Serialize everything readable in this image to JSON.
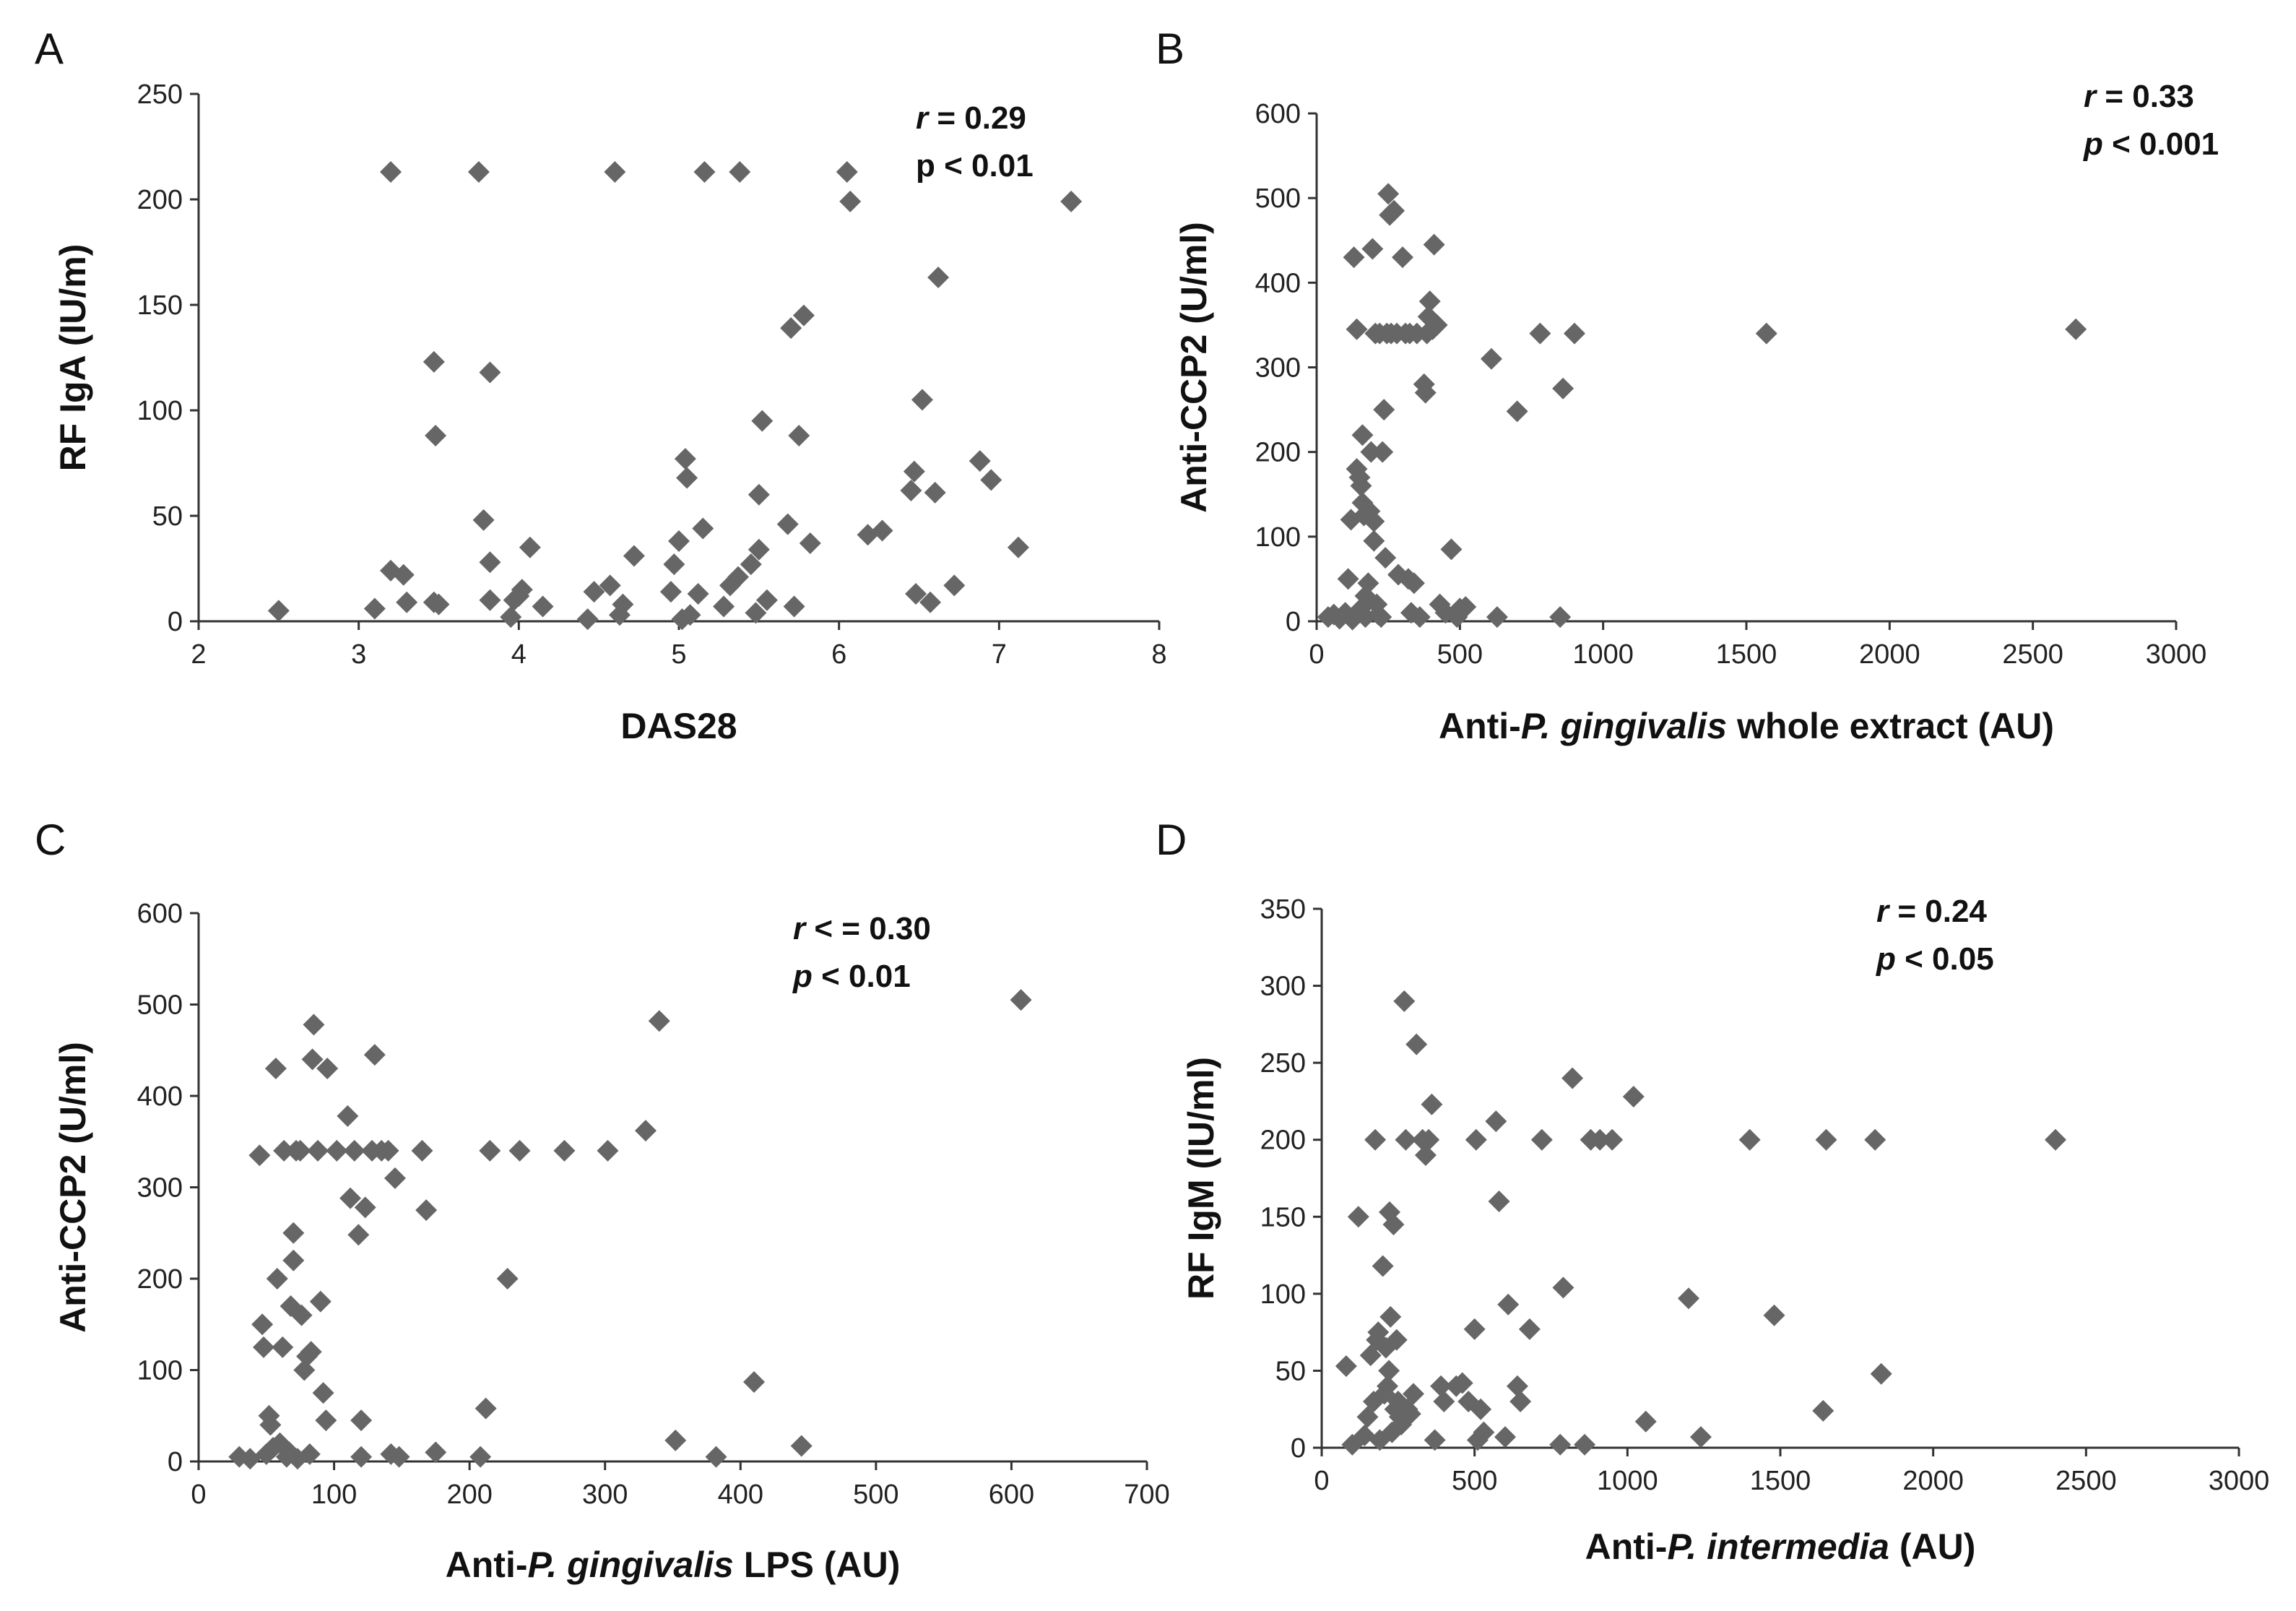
{
  "colors": {
    "marker": "#666666",
    "axis": "#333333",
    "text": "#111111"
  },
  "chart_data": [
    {
      "panel": "A",
      "type": "scatter",
      "marker": "diamond",
      "xlabel_parts": [
        {
          "t": "DAS28",
          "i": false
        }
      ],
      "ylabel_parts": [
        {
          "t": "RF IgA (IU/m)",
          "i": false
        }
      ],
      "xlim": [
        2,
        8
      ],
      "ylim": [
        0,
        250
      ],
      "xticks": [
        2,
        3,
        4,
        5,
        6,
        7,
        8
      ],
      "yticks": [
        0,
        50,
        100,
        150,
        200,
        250
      ],
      "annotation": [
        [
          {
            "t": "r",
            "i": true
          },
          {
            "t": " = 0.29",
            "i": false
          }
        ],
        [
          {
            "t": "p < 0.01",
            "i": false
          }
        ]
      ],
      "points": [
        [
          2.5,
          5
        ],
        [
          3.1,
          6
        ],
        [
          3.2,
          24
        ],
        [
          3.2,
          213
        ],
        [
          3.28,
          22
        ],
        [
          3.3,
          9
        ],
        [
          3.47,
          9
        ],
        [
          3.47,
          123
        ],
        [
          3.48,
          88
        ],
        [
          3.5,
          8
        ],
        [
          3.75,
          213
        ],
        [
          3.78,
          48
        ],
        [
          3.82,
          28
        ],
        [
          3.82,
          118
        ],
        [
          3.82,
          10
        ],
        [
          3.95,
          2
        ],
        [
          3.97,
          10
        ],
        [
          4.0,
          12
        ],
        [
          4.02,
          15
        ],
        [
          4.07,
          35
        ],
        [
          4.15,
          7
        ],
        [
          4.43,
          1
        ],
        [
          4.47,
          14
        ],
        [
          4.57,
          17
        ],
        [
          4.6,
          213
        ],
        [
          4.63,
          3
        ],
        [
          4.65,
          8
        ],
        [
          4.72,
          31
        ],
        [
          4.95,
          14
        ],
        [
          4.97,
          27
        ],
        [
          5.0,
          38
        ],
        [
          5.02,
          1
        ],
        [
          5.04,
          77
        ],
        [
          5.05,
          68
        ],
        [
          5.07,
          3
        ],
        [
          5.12,
          13
        ],
        [
          5.15,
          44
        ],
        [
          5.16,
          213
        ],
        [
          5.28,
          7
        ],
        [
          5.32,
          17
        ],
        [
          5.37,
          21
        ],
        [
          5.38,
          213
        ],
        [
          5.45,
          27
        ],
        [
          5.48,
          4
        ],
        [
          5.5,
          34
        ],
        [
          5.5,
          60
        ],
        [
          5.52,
          95
        ],
        [
          5.55,
          10
        ],
        [
          5.68,
          46
        ],
        [
          5.7,
          139
        ],
        [
          5.72,
          7
        ],
        [
          5.75,
          88
        ],
        [
          5.78,
          145
        ],
        [
          5.82,
          37
        ],
        [
          6.05,
          213
        ],
        [
          6.07,
          199
        ],
        [
          6.18,
          41
        ],
        [
          6.27,
          43
        ],
        [
          6.45,
          62
        ],
        [
          6.47,
          71
        ],
        [
          6.48,
          13
        ],
        [
          6.52,
          105
        ],
        [
          6.57,
          9
        ],
        [
          6.6,
          61
        ],
        [
          6.62,
          163
        ],
        [
          6.72,
          17
        ],
        [
          6.88,
          76
        ],
        [
          6.95,
          67
        ],
        [
          7.12,
          35
        ],
        [
          7.45,
          199
        ]
      ]
    },
    {
      "panel": "B",
      "type": "scatter",
      "marker": "diamond",
      "xlabel_parts": [
        {
          "t": "Anti-",
          "i": false
        },
        {
          "t": "P. gingivalis",
          "i": true
        },
        {
          "t": " whole extract (AU)",
          "i": false
        }
      ],
      "ylabel_parts": [
        {
          "t": "Anti-CCP2 (U/ml)",
          "i": false
        }
      ],
      "xlim": [
        0,
        3000
      ],
      "ylim": [
        0,
        600
      ],
      "xticks": [
        0,
        500,
        1000,
        1500,
        2000,
        2500,
        3000
      ],
      "yticks": [
        0,
        100,
        200,
        300,
        400,
        500,
        600
      ],
      "annotation": [
        [
          {
            "t": "r",
            "i": true
          },
          {
            "t": " = 0.33",
            "i": false
          }
        ],
        [
          {
            "t": "p",
            "i": true
          },
          {
            "t": " < 0.001",
            "i": false
          }
        ]
      ],
      "points": [
        [
          40,
          5
        ],
        [
          60,
          8
        ],
        [
          80,
          3
        ],
        [
          100,
          10
        ],
        [
          110,
          50
        ],
        [
          120,
          120
        ],
        [
          125,
          2
        ],
        [
          130,
          430
        ],
        [
          140,
          345
        ],
        [
          140,
          180
        ],
        [
          150,
          170
        ],
        [
          155,
          160
        ],
        [
          155,
          15
        ],
        [
          160,
          140
        ],
        [
          160,
          220
        ],
        [
          165,
          125
        ],
        [
          170,
          5
        ],
        [
          170,
          30
        ],
        [
          180,
          45
        ],
        [
          185,
          130
        ],
        [
          190,
          200
        ],
        [
          195,
          440
        ],
        [
          200,
          95
        ],
        [
          200,
          118
        ],
        [
          205,
          340
        ],
        [
          210,
          20
        ],
        [
          215,
          8
        ],
        [
          220,
          340
        ],
        [
          225,
          5
        ],
        [
          230,
          200
        ],
        [
          235,
          250
        ],
        [
          240,
          75
        ],
        [
          245,
          340
        ],
        [
          250,
          505
        ],
        [
          255,
          480
        ],
        [
          260,
          340
        ],
        [
          270,
          485
        ],
        [
          280,
          340
        ],
        [
          285,
          55
        ],
        [
          300,
          430
        ],
        [
          310,
          340
        ],
        [
          320,
          50
        ],
        [
          325,
          340
        ],
        [
          330,
          10
        ],
        [
          340,
          45
        ],
        [
          350,
          340
        ],
        [
          360,
          5
        ],
        [
          375,
          280
        ],
        [
          380,
          270
        ],
        [
          385,
          340
        ],
        [
          390,
          360
        ],
        [
          395,
          378
        ],
        [
          405,
          345
        ],
        [
          410,
          445
        ],
        [
          420,
          350
        ],
        [
          430,
          20
        ],
        [
          450,
          10
        ],
        [
          470,
          85
        ],
        [
          490,
          5
        ],
        [
          500,
          15
        ],
        [
          520,
          17
        ],
        [
          610,
          310
        ],
        [
          630,
          5
        ],
        [
          700,
          248
        ],
        [
          780,
          340
        ],
        [
          850,
          5
        ],
        [
          860,
          275
        ],
        [
          900,
          340
        ],
        [
          1570,
          340
        ],
        [
          2650,
          345
        ]
      ]
    },
    {
      "panel": "C",
      "type": "scatter",
      "marker": "diamond",
      "xlabel_parts": [
        {
          "t": "Anti-",
          "i": false
        },
        {
          "t": "P. gingivalis",
          "i": true
        },
        {
          "t": " LPS (AU)",
          "i": false
        }
      ],
      "ylabel_parts": [
        {
          "t": "Anti-CCP2 (U/ml)",
          "i": false
        }
      ],
      "xlim": [
        0,
        700
      ],
      "ylim": [
        0,
        600
      ],
      "xticks": [
        0,
        100,
        200,
        300,
        400,
        500,
        600,
        700
      ],
      "yticks": [
        0,
        100,
        200,
        300,
        400,
        500,
        600
      ],
      "annotation": [
        [
          {
            "t": "r",
            "i": true
          },
          {
            "t": " < = 0.30",
            "i": false
          }
        ],
        [
          {
            "t": "p",
            "i": true
          },
          {
            "t": " < 0.01",
            "i": false
          }
        ]
      ],
      "points": [
        [
          30,
          5
        ],
        [
          38,
          3
        ],
        [
          45,
          335
        ],
        [
          47,
          150
        ],
        [
          48,
          125
        ],
        [
          50,
          8
        ],
        [
          52,
          50
        ],
        [
          53,
          40
        ],
        [
          55,
          15
        ],
        [
          57,
          430
        ],
        [
          58,
          200
        ],
        [
          60,
          20
        ],
        [
          62,
          125
        ],
        [
          63,
          340
        ],
        [
          65,
          5
        ],
        [
          67,
          10
        ],
        [
          68,
          170
        ],
        [
          70,
          220
        ],
        [
          70,
          250
        ],
        [
          72,
          340
        ],
        [
          73,
          3
        ],
        [
          75,
          340
        ],
        [
          76,
          160
        ],
        [
          78,
          100
        ],
        [
          80,
          115
        ],
        [
          82,
          8
        ],
        [
          83,
          120
        ],
        [
          84,
          440
        ],
        [
          85,
          478
        ],
        [
          88,
          340
        ],
        [
          90,
          175
        ],
        [
          92,
          75
        ],
        [
          94,
          45
        ],
        [
          95,
          430
        ],
        [
          102,
          340
        ],
        [
          110,
          378
        ],
        [
          112,
          288
        ],
        [
          115,
          340
        ],
        [
          118,
          248
        ],
        [
          120,
          45
        ],
        [
          120,
          5
        ],
        [
          123,
          278
        ],
        [
          128,
          340
        ],
        [
          130,
          445
        ],
        [
          135,
          340
        ],
        [
          140,
          340
        ],
        [
          142,
          8
        ],
        [
          145,
          310
        ],
        [
          148,
          5
        ],
        [
          165,
          340
        ],
        [
          168,
          275
        ],
        [
          175,
          10
        ],
        [
          208,
          5
        ],
        [
          212,
          58
        ],
        [
          215,
          340
        ],
        [
          228,
          200
        ],
        [
          237,
          340
        ],
        [
          270,
          340
        ],
        [
          302,
          340
        ],
        [
          330,
          362
        ],
        [
          340,
          482
        ],
        [
          352,
          23
        ],
        [
          382,
          5
        ],
        [
          410,
          87
        ],
        [
          445,
          17
        ],
        [
          607,
          505
        ]
      ]
    },
    {
      "panel": "D",
      "type": "scatter",
      "marker": "diamond",
      "xlabel_parts": [
        {
          "t": "Anti-",
          "i": false
        },
        {
          "t": "P. intermedia",
          "i": true
        },
        {
          "t": " (AU)",
          "i": false
        }
      ],
      "ylabel_parts": [
        {
          "t": "RF  IgM (IU/ml)",
          "i": false
        }
      ],
      "xlim": [
        0,
        3000
      ],
      "ylim": [
        0,
        350
      ],
      "xticks": [
        0,
        500,
        1000,
        1500,
        2000,
        2500,
        3000
      ],
      "yticks": [
        0,
        50,
        100,
        150,
        200,
        250,
        300,
        350
      ],
      "annotation": [
        [
          {
            "t": "r",
            "i": true
          },
          {
            "t": " = 0.24",
            "i": false
          }
        ],
        [
          {
            "t": "p",
            "i": true
          },
          {
            "t": " < 0.05",
            "i": false
          }
        ]
      ],
      "points": [
        [
          80,
          53
        ],
        [
          100,
          2
        ],
        [
          120,
          150
        ],
        [
          140,
          8
        ],
        [
          150,
          20
        ],
        [
          160,
          60
        ],
        [
          170,
          30
        ],
        [
          175,
          200
        ],
        [
          180,
          70
        ],
        [
          185,
          75
        ],
        [
          190,
          5
        ],
        [
          200,
          118
        ],
        [
          205,
          35
        ],
        [
          210,
          65
        ],
        [
          215,
          40
        ],
        [
          220,
          50
        ],
        [
          222,
          153
        ],
        [
          225,
          85
        ],
        [
          230,
          10
        ],
        [
          235,
          145
        ],
        [
          240,
          25
        ],
        [
          245,
          70
        ],
        [
          250,
          30
        ],
        [
          255,
          20
        ],
        [
          260,
          15
        ],
        [
          270,
          290
        ],
        [
          275,
          200
        ],
        [
          280,
          25
        ],
        [
          290,
          22
        ],
        [
          300,
          35
        ],
        [
          310,
          262
        ],
        [
          330,
          200
        ],
        [
          340,
          190
        ],
        [
          350,
          200
        ],
        [
          360,
          223
        ],
        [
          370,
          5
        ],
        [
          390,
          40
        ],
        [
          400,
          30
        ],
        [
          440,
          40
        ],
        [
          460,
          42
        ],
        [
          480,
          30
        ],
        [
          500,
          77
        ],
        [
          505,
          200
        ],
        [
          510,
          5
        ],
        [
          520,
          25
        ],
        [
          530,
          10
        ],
        [
          570,
          212
        ],
        [
          580,
          160
        ],
        [
          600,
          7
        ],
        [
          610,
          93
        ],
        [
          640,
          40
        ],
        [
          650,
          30
        ],
        [
          680,
          77
        ],
        [
          720,
          200
        ],
        [
          780,
          2
        ],
        [
          790,
          104
        ],
        [
          820,
          240
        ],
        [
          860,
          2
        ],
        [
          880,
          200
        ],
        [
          910,
          200
        ],
        [
          950,
          200
        ],
        [
          1020,
          228
        ],
        [
          1060,
          17
        ],
        [
          1200,
          97
        ],
        [
          1240,
          7
        ],
        [
          1400,
          200
        ],
        [
          1480,
          86
        ],
        [
          1640,
          24
        ],
        [
          1650,
          200
        ],
        [
          1810,
          200
        ],
        [
          1830,
          48
        ],
        [
          2400,
          200
        ]
      ]
    }
  ]
}
